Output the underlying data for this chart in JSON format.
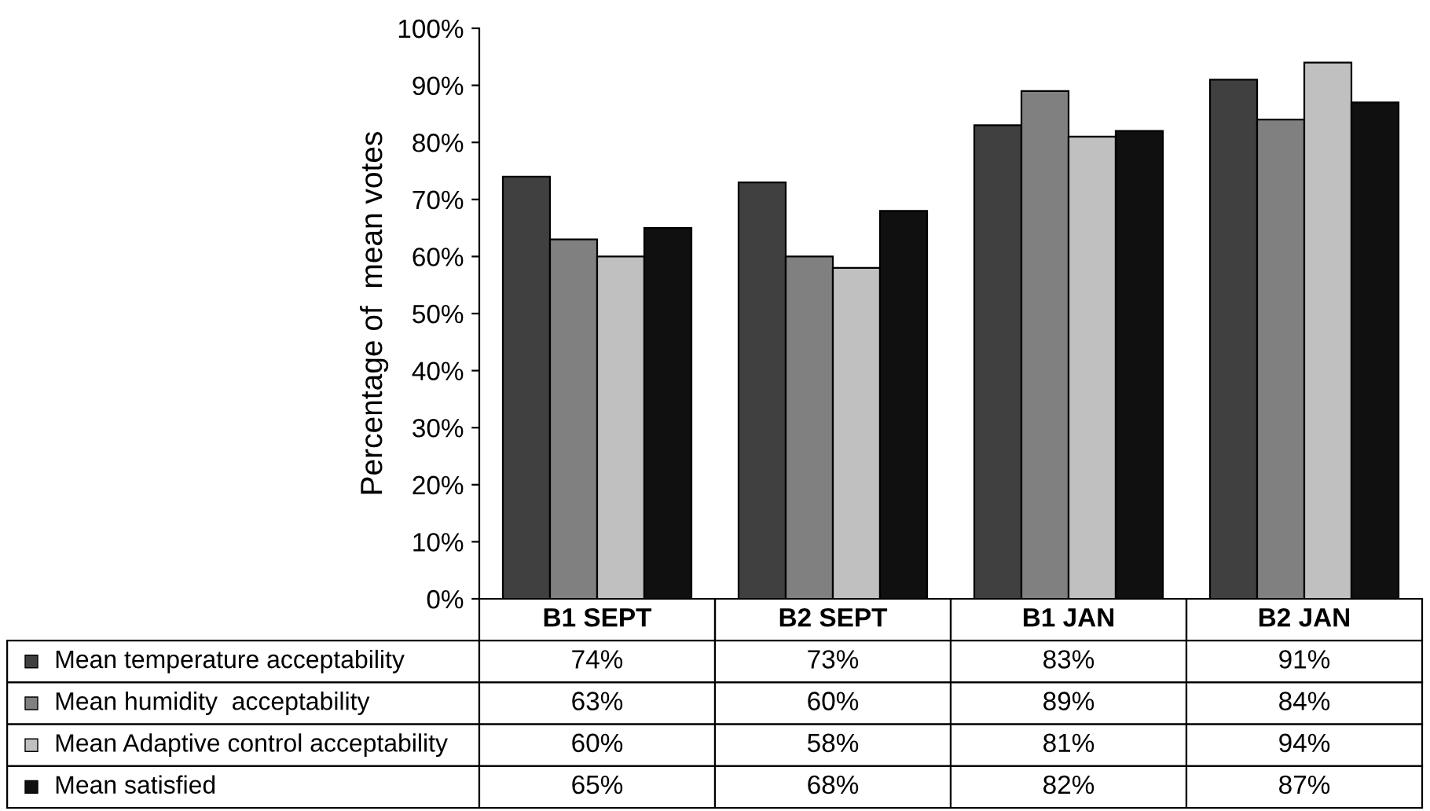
{
  "chart_data": {
    "type": "bar",
    "ylabel": "Percentage of  mean votes",
    "categories": [
      "B1 SEPT",
      "B2 SEPT",
      "B1 JAN",
      "B2 JAN"
    ],
    "series": [
      {
        "name": "Mean temperature acceptability",
        "color": "#404040",
        "values": [
          74,
          73,
          83,
          91
        ],
        "value_labels": [
          "74%",
          "73%",
          "83%",
          "91%"
        ]
      },
      {
        "name": "Mean humidity  acceptability",
        "color": "#808080",
        "values": [
          63,
          60,
          89,
          84
        ],
        "value_labels": [
          "63%",
          "60%",
          "89%",
          "84%"
        ]
      },
      {
        "name": "Mean Adaptive control acceptability",
        "color": "#c0c0c0",
        "values": [
          60,
          58,
          81,
          94
        ],
        "value_labels": [
          "60%",
          "58%",
          "81%",
          "94%"
        ]
      },
      {
        "name": "Mean satisfied",
        "color": "#101010",
        "values": [
          65,
          68,
          82,
          87
        ],
        "value_labels": [
          "65%",
          "68%",
          "82%",
          "87%"
        ]
      }
    ],
    "ylim": [
      0,
      100
    ],
    "yticks": [
      {
        "value": 0,
        "label": "0%"
      },
      {
        "value": 10,
        "label": "10%"
      },
      {
        "value": 20,
        "label": "20%"
      },
      {
        "value": 30,
        "label": "30%"
      },
      {
        "value": 40,
        "label": "40%"
      },
      {
        "value": 50,
        "label": "50%"
      },
      {
        "value": 60,
        "label": "60%"
      },
      {
        "value": 70,
        "label": "70%"
      },
      {
        "value": 80,
        "label": "80%"
      },
      {
        "value": 90,
        "label": "90%"
      },
      {
        "value": 100,
        "label": "100%"
      }
    ],
    "grid": false,
    "legend": "bottom"
  }
}
